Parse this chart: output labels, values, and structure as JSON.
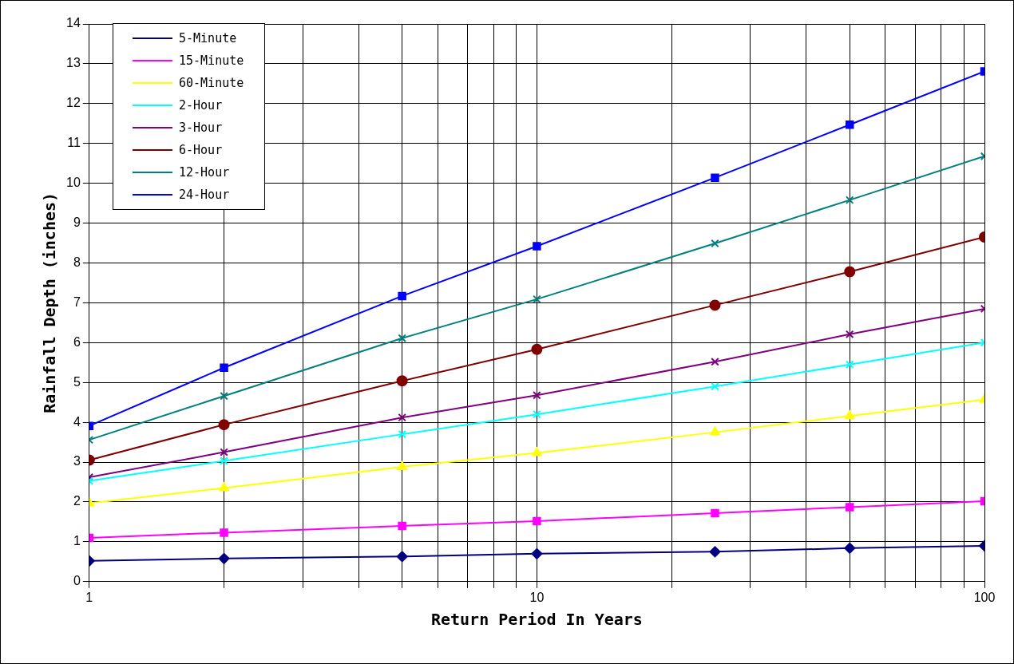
{
  "chart_data": {
    "type": "line",
    "xlabel": "Return Period In Years",
    "ylabel": "Rainfall Depth (inches)",
    "log": "x",
    "xlim": [
      1,
      100
    ],
    "xticks": [
      1,
      {
        "value": 2,
        "label": null
      },
      {
        "value": 3,
        "label": null
      },
      {
        "value": 4,
        "label": null
      },
      {
        "value": 5,
        "label": null
      },
      {
        "value": 6,
        "label": null
      },
      {
        "value": 7,
        "label": null
      },
      {
        "value": 8,
        "label": null
      },
      {
        "value": 9,
        "label": null
      },
      10,
      {
        "value": 20,
        "label": null
      },
      {
        "value": 30,
        "label": null
      },
      {
        "value": 40,
        "label": null
      },
      {
        "value": 50,
        "label": null
      },
      {
        "value": 60,
        "label": null
      },
      {
        "value": 70,
        "label": null
      },
      {
        "value": 80,
        "label": null
      },
      {
        "value": 90,
        "label": null
      },
      100
    ],
    "ylim": [
      0,
      14
    ],
    "yticks": [
      0,
      1,
      2,
      3,
      4,
      5,
      6,
      7,
      8,
      9,
      10,
      11,
      12,
      13,
      14
    ],
    "grid": true,
    "legend": "top left",
    "x": [
      1,
      2,
      5,
      10,
      25,
      50,
      100
    ],
    "series": [
      {
        "name": "5-Minute",
        "color": "#000080",
        "marker": "diamond",
        "values": [
          0.52,
          0.58,
          0.63,
          0.7,
          0.75,
          0.84,
          0.9
        ]
      },
      {
        "name": "15-Minute",
        "color": "#ff00ff",
        "marker": "square",
        "values": [
          1.1,
          1.23,
          1.4,
          1.52,
          1.72,
          1.87,
          2.02
        ]
      },
      {
        "name": "60-Minute",
        "color": "#ffff00",
        "marker": "triangle",
        "values": [
          1.97,
          2.35,
          2.88,
          3.23,
          3.75,
          4.16,
          4.57
        ]
      },
      {
        "name": "2-Hour",
        "color": "#00ffff",
        "marker": "cross",
        "values": [
          2.53,
          3.03,
          3.7,
          4.2,
          4.9,
          5.45,
          6.0
        ]
      },
      {
        "name": "3-Hour",
        "color": "#800080",
        "marker": "cross",
        "values": [
          2.62,
          3.25,
          4.12,
          4.68,
          5.52,
          6.21,
          6.85
        ]
      },
      {
        "name": "6-Hour",
        "color": "#800000",
        "marker": "circle",
        "values": [
          3.05,
          3.94,
          5.04,
          5.83,
          6.94,
          7.78,
          8.65
        ]
      },
      {
        "name": "12-Hour",
        "color": "#008080",
        "marker": "cross",
        "values": [
          3.56,
          4.66,
          6.11,
          7.09,
          8.49,
          9.58,
          10.68
        ]
      },
      {
        "name": "24-Hour",
        "color": "#0000ff",
        "marker": "square",
        "values": [
          3.91,
          5.37,
          7.17,
          8.42,
          10.14,
          11.47,
          12.81
        ]
      }
    ]
  }
}
